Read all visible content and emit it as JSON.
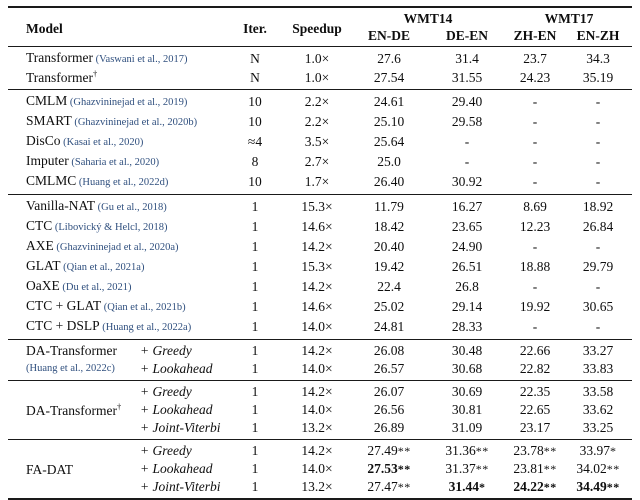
{
  "colors": {
    "citation": "#2f4f7e",
    "text": "#0e0e0e",
    "rule": "#1a1a1a",
    "background": "#ffffff"
  },
  "table": {
    "header": {
      "model": "Model",
      "iter": "Iter.",
      "speedup": "Speedup",
      "wmt14": "WMT14",
      "wmt17": "WMT17",
      "subcolumns": [
        "EN-DE",
        "DE-EN",
        "ZH-EN",
        "EN-ZH"
      ]
    },
    "sections": [
      {
        "type": "simple",
        "rows": [
          {
            "model": "Transformer",
            "dagger": false,
            "citation": "(Vaswani et al., 2017)",
            "iter": "N",
            "speedup": "1.0×",
            "cells": [
              {
                "v": "27.6"
              },
              {
                "v": "31.4"
              },
              {
                "v": "23.7"
              },
              {
                "v": "34.3"
              }
            ]
          },
          {
            "model": "Transformer",
            "dagger": true,
            "citation": "",
            "iter": "N",
            "speedup": "1.0×",
            "cells": [
              {
                "v": "27.54"
              },
              {
                "v": "31.55"
              },
              {
                "v": "24.23"
              },
              {
                "v": "35.19"
              }
            ]
          }
        ]
      },
      {
        "type": "simple",
        "rows": [
          {
            "model": "CMLM",
            "dagger": false,
            "citation": "(Ghazvininejad et al., 2019)",
            "iter": "10",
            "speedup": "2.2×",
            "cells": [
              {
                "v": "24.61"
              },
              {
                "v": "29.40"
              },
              {
                "v": "-"
              },
              {
                "v": "-"
              }
            ]
          },
          {
            "model": "SMART",
            "dagger": false,
            "citation": "(Ghazvininejad et al., 2020b)",
            "iter": "10",
            "speedup": "2.2×",
            "cells": [
              {
                "v": "25.10"
              },
              {
                "v": "29.58"
              },
              {
                "v": "-"
              },
              {
                "v": "-"
              }
            ]
          },
          {
            "model": "DisCo",
            "dagger": false,
            "citation": "(Kasai et al., 2020)",
            "iter": "≈4",
            "speedup": "3.5×",
            "cells": [
              {
                "v": "25.64"
              },
              {
                "v": "-"
              },
              {
                "v": "-"
              },
              {
                "v": "-"
              }
            ]
          },
          {
            "model": "Imputer",
            "dagger": false,
            "citation": "(Saharia et al., 2020)",
            "iter": "8",
            "speedup": "2.7×",
            "cells": [
              {
                "v": "25.0"
              },
              {
                "v": "-"
              },
              {
                "v": "-"
              },
              {
                "v": "-"
              }
            ]
          },
          {
            "model": "CMLMC",
            "dagger": false,
            "citation": "(Huang et al., 2022d)",
            "iter": "10",
            "speedup": "1.7×",
            "cells": [
              {
                "v": "26.40"
              },
              {
                "v": "30.92"
              },
              {
                "v": "-"
              },
              {
                "v": "-"
              }
            ]
          }
        ]
      },
      {
        "type": "simple",
        "rows": [
          {
            "model": "Vanilla-NAT",
            "dagger": false,
            "citation": "(Gu et al., 2018)",
            "iter": "1",
            "speedup": "15.3×",
            "cells": [
              {
                "v": "11.79"
              },
              {
                "v": "16.27"
              },
              {
                "v": "8.69"
              },
              {
                "v": "18.92"
              }
            ]
          },
          {
            "model": "CTC",
            "dagger": false,
            "citation": "(Libovický & Helcl, 2018)",
            "iter": "1",
            "speedup": "14.6×",
            "cells": [
              {
                "v": "18.42"
              },
              {
                "v": "23.65"
              },
              {
                "v": "12.23"
              },
              {
                "v": "26.84"
              }
            ]
          },
          {
            "model": "AXE",
            "dagger": false,
            "citation": "(Ghazvininejad et al., 2020a)",
            "iter": "1",
            "speedup": "14.2×",
            "cells": [
              {
                "v": "20.40"
              },
              {
                "v": "24.90"
              },
              {
                "v": "-"
              },
              {
                "v": "-"
              }
            ]
          },
          {
            "model": "GLAT",
            "dagger": false,
            "citation": "(Qian et al., 2021a)",
            "iter": "1",
            "speedup": "15.3×",
            "cells": [
              {
                "v": "19.42"
              },
              {
                "v": "26.51"
              },
              {
                "v": "18.88"
              },
              {
                "v": "29.79"
              }
            ]
          },
          {
            "model": "OaXE",
            "dagger": false,
            "citation": "(Du et al., 2021)",
            "iter": "1",
            "speedup": "14.2×",
            "cells": [
              {
                "v": "22.4"
              },
              {
                "v": "26.8"
              },
              {
                "v": "-"
              },
              {
                "v": "-"
              }
            ]
          },
          {
            "model": "CTC + GLAT",
            "dagger": false,
            "citation": "(Qian et al., 2021b)",
            "iter": "1",
            "speedup": "14.6×",
            "cells": [
              {
                "v": "25.02"
              },
              {
                "v": "29.14"
              },
              {
                "v": "19.92"
              },
              {
                "v": "30.65"
              }
            ]
          },
          {
            "model": "CTC + DSLP",
            "dagger": false,
            "citation": "(Huang et al., 2022a)",
            "iter": "1",
            "speedup": "14.0×",
            "cells": [
              {
                "v": "24.81"
              },
              {
                "v": "28.33"
              },
              {
                "v": "-"
              },
              {
                "v": "-"
              }
            ]
          }
        ]
      },
      {
        "type": "group",
        "model": "DA-Transformer",
        "dagger": false,
        "model_citation": "(Huang et al., 2022c)",
        "valign": "top",
        "rows": [
          {
            "strategy": "+ Greedy",
            "iter": "1",
            "speedup": "14.2×",
            "cells": [
              {
                "v": "26.08"
              },
              {
                "v": "30.48"
              },
              {
                "v": "22.66"
              },
              {
                "v": "33.27"
              }
            ]
          },
          {
            "strategy": "+ Lookahead",
            "iter": "1",
            "speedup": "14.0×",
            "cells": [
              {
                "v": "26.57"
              },
              {
                "v": "30.68"
              },
              {
                "v": "22.82"
              },
              {
                "v": "33.83"
              }
            ]
          }
        ]
      },
      {
        "type": "group",
        "model": "DA-Transformer",
        "dagger": true,
        "model_citation": "",
        "valign": "middle",
        "rows": [
          {
            "strategy": "+ Greedy",
            "iter": "1",
            "speedup": "14.2×",
            "cells": [
              {
                "v": "26.07"
              },
              {
                "v": "30.69"
              },
              {
                "v": "22.35"
              },
              {
                "v": "33.58"
              }
            ]
          },
          {
            "strategy": "+ Lookahead",
            "iter": "1",
            "speedup": "14.0×",
            "cells": [
              {
                "v": "26.56"
              },
              {
                "v": "30.81"
              },
              {
                "v": "22.65"
              },
              {
                "v": "33.62"
              }
            ]
          },
          {
            "strategy": "+ Joint-Viterbi",
            "iter": "1",
            "speedup": "13.2×",
            "cells": [
              {
                "v": "26.89"
              },
              {
                "v": "31.09"
              },
              {
                "v": "23.17"
              },
              {
                "v": "33.25"
              }
            ]
          }
        ]
      },
      {
        "type": "group",
        "model": "FA-DAT",
        "dagger": false,
        "model_citation": "",
        "valign": "middle",
        "rows": [
          {
            "strategy": "+ Greedy",
            "iter": "1",
            "speedup": "14.2×",
            "cells": [
              {
                "v": "27.49",
                "s": "**"
              },
              {
                "v": "31.36",
                "s": "**"
              },
              {
                "v": "23.78",
                "s": "**"
              },
              {
                "v": "33.97",
                "s": "*"
              }
            ]
          },
          {
            "strategy": "+ Lookahead",
            "iter": "1",
            "speedup": "14.0×",
            "cells": [
              {
                "v": "27.53",
                "s": "**",
                "b": true
              },
              {
                "v": "31.37",
                "s": "**"
              },
              {
                "v": "23.81",
                "s": "**"
              },
              {
                "v": "34.02",
                "s": "**"
              }
            ]
          },
          {
            "strategy": "+ Joint-Viterbi",
            "iter": "1",
            "speedup": "13.2×",
            "cells": [
              {
                "v": "27.47",
                "s": "**"
              },
              {
                "v": "31.44",
                "s": "*",
                "b": true
              },
              {
                "v": "24.22",
                "s": "**",
                "b": true
              },
              {
                "v": "34.49",
                "s": "**",
                "b": true
              }
            ]
          }
        ]
      }
    ]
  }
}
